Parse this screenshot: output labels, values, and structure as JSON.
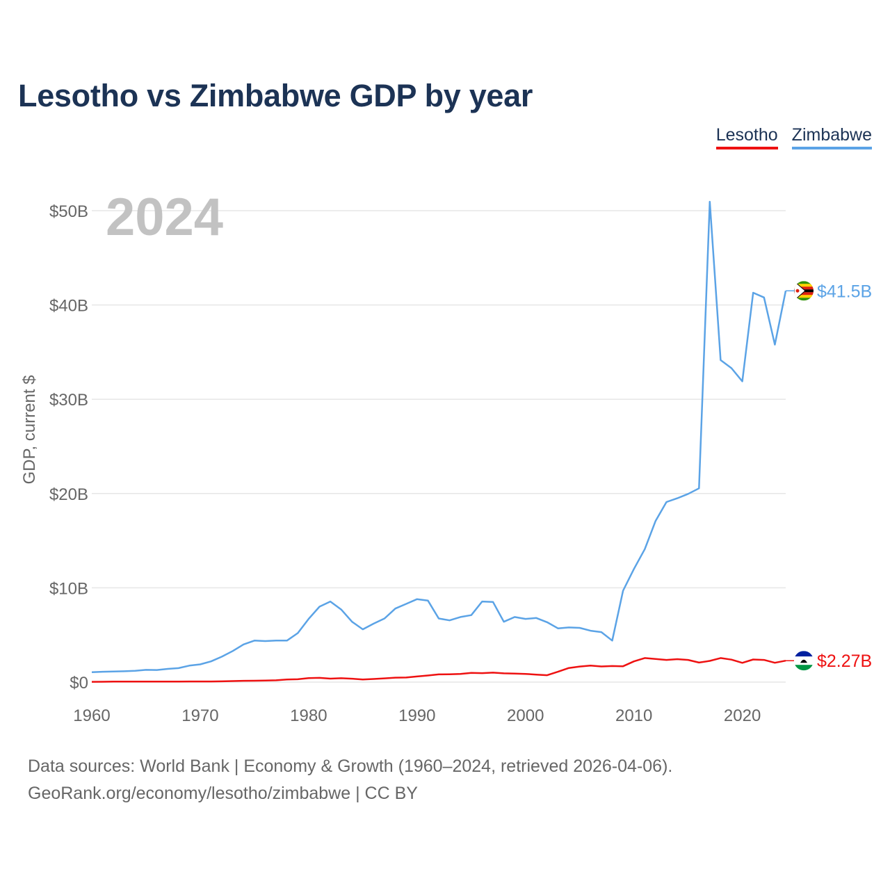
{
  "chart_data": {
    "type": "line",
    "title": "Lesotho vs Zimbabwe GDP by year",
    "xlabel": "",
    "ylabel": "GDP, current $",
    "xlim": [
      1960,
      2024
    ],
    "ylim": [
      0,
      50
    ],
    "y_unit": "billions of current US$",
    "year_label": "2024",
    "x_ticks": [
      1960,
      1970,
      1980,
      1990,
      2000,
      2010,
      2020
    ],
    "x_tick_labels": [
      "1960",
      "1970",
      "1980",
      "1990",
      "2000",
      "2010",
      "2020"
    ],
    "y_ticks": [
      0,
      10,
      20,
      30,
      40,
      50
    ],
    "y_tick_labels": [
      "$0",
      "$10B",
      "$20B",
      "$30B",
      "$40B",
      "$50B"
    ],
    "grid": true,
    "legend_position": "top-right",
    "x": [
      1960,
      1961,
      1962,
      1963,
      1964,
      1965,
      1966,
      1967,
      1968,
      1969,
      1970,
      1971,
      1972,
      1973,
      1974,
      1975,
      1976,
      1977,
      1978,
      1979,
      1980,
      1981,
      1982,
      1983,
      1984,
      1985,
      1986,
      1987,
      1988,
      1989,
      1990,
      1991,
      1992,
      1993,
      1994,
      1995,
      1996,
      1997,
      1998,
      1999,
      2000,
      2001,
      2002,
      2003,
      2004,
      2005,
      2006,
      2007,
      2008,
      2009,
      2010,
      2011,
      2012,
      2013,
      2014,
      2015,
      2016,
      2017,
      2018,
      2019,
      2020,
      2021,
      2022,
      2023,
      2024
    ],
    "series": [
      {
        "name": "Lesotho",
        "color": "#ee1111",
        "end_label": "$2.27B",
        "values": [
          0.03,
          0.04,
          0.05,
          0.05,
          0.05,
          0.05,
          0.05,
          0.06,
          0.06,
          0.07,
          0.07,
          0.07,
          0.08,
          0.11,
          0.14,
          0.15,
          0.16,
          0.19,
          0.27,
          0.3,
          0.43,
          0.45,
          0.37,
          0.41,
          0.36,
          0.28,
          0.33,
          0.4,
          0.47,
          0.49,
          0.6,
          0.7,
          0.82,
          0.83,
          0.87,
          0.98,
          0.95,
          1.0,
          0.93,
          0.91,
          0.87,
          0.8,
          0.73,
          1.1,
          1.5,
          1.65,
          1.75,
          1.66,
          1.7,
          1.68,
          2.2,
          2.55,
          2.45,
          2.35,
          2.43,
          2.35,
          2.07,
          2.25,
          2.55,
          2.38,
          2.04,
          2.4,
          2.35,
          2.05,
          2.27
        ]
      },
      {
        "name": "Zimbabwe",
        "color": "#5ba3e6",
        "end_label": "$41.5B",
        "values": [
          1.05,
          1.1,
          1.12,
          1.15,
          1.2,
          1.3,
          1.28,
          1.4,
          1.48,
          1.75,
          1.88,
          2.2,
          2.7,
          3.3,
          4.0,
          4.4,
          4.35,
          4.4,
          4.4,
          5.2,
          6.7,
          8.0,
          8.55,
          7.7,
          6.4,
          5.6,
          6.2,
          6.75,
          7.8,
          8.3,
          8.8,
          8.65,
          6.75,
          6.55,
          6.9,
          7.1,
          8.55,
          8.5,
          6.4,
          6.9,
          6.7,
          6.8,
          6.35,
          5.7,
          5.8,
          5.75,
          5.45,
          5.3,
          4.4,
          9.7,
          12.0,
          14.1,
          17.1,
          19.1,
          19.5,
          19.96,
          20.55,
          50.95,
          34.15,
          33.3,
          31.9,
          41.3,
          40.8,
          35.8,
          41.5
        ]
      }
    ]
  },
  "footer": {
    "line1": "Data sources: World Bank | Economy & Growth (1960–2024, retrieved 2026-04-06).",
    "line2": "GeoRank.org/economy/lesotho/zimbabwe | CC BY"
  }
}
